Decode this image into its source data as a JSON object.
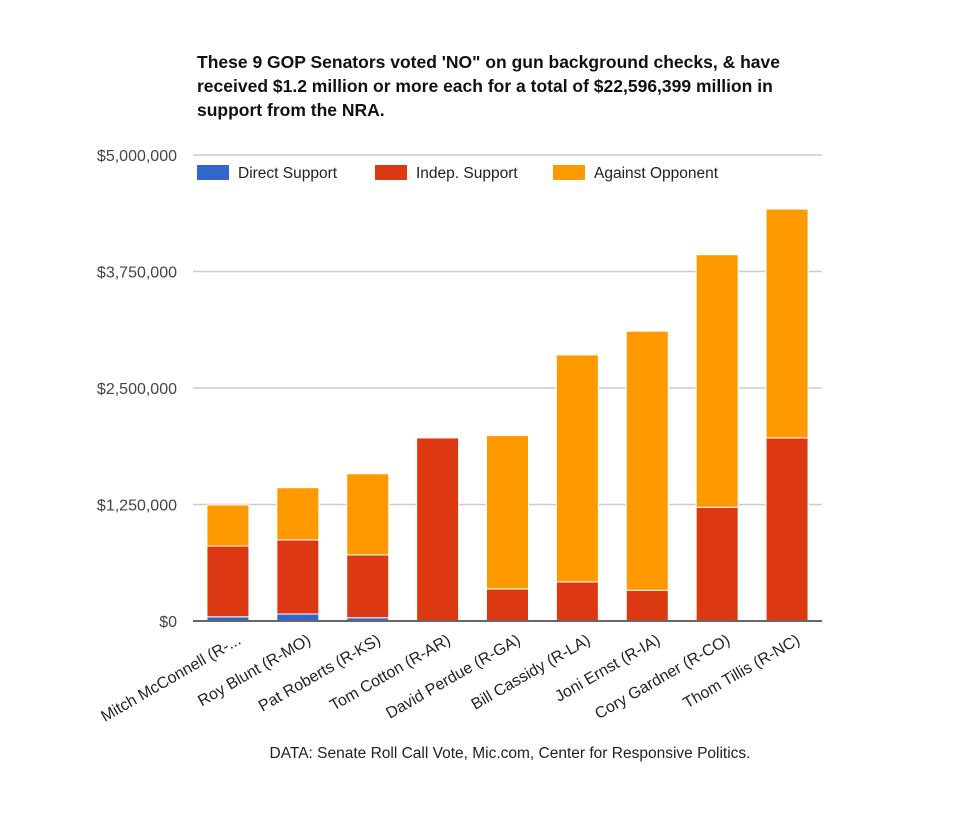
{
  "chart_data": {
    "type": "bar",
    "stacked": true,
    "title": "These 9 GOP Senators voted 'NO\" on gun background checks, & have received $1.2 million or more each for a total of $22,596,399 million in support from the NRA.",
    "xlabel": "",
    "ylabel": "",
    "ylim": [
      0,
      5000000
    ],
    "yticks": [
      0,
      1250000,
      2500000,
      3750000,
      5000000
    ],
    "ytick_labels": [
      "$0",
      "$1,250,000",
      "$2,500,000",
      "$3,750,000",
      "$5,000,000"
    ],
    "grid": true,
    "legend_position": "top-left",
    "categories": [
      "Mitch McConnell (R-...",
      "Roy Blunt (R-MO)",
      "Pat Roberts (R-KS)",
      "Tom Cotton (R-AR)",
      "David Perdue (R-GA)",
      "Bill Cassidy (R-LA)",
      "Joni Ernst (R-IA)",
      "Cory Gardner (R-CO)",
      "Thom Tillis (R-NC)"
    ],
    "series": [
      {
        "name": "Direct Support",
        "color": "#3366cc",
        "values": [
          45000,
          75000,
          35000,
          5000,
          0,
          0,
          0,
          0,
          0
        ]
      },
      {
        "name": "Indep. Support",
        "color": "#dc3912",
        "values": [
          760000,
          795000,
          675000,
          1960000,
          345000,
          420000,
          330000,
          1220000,
          1965000
        ]
      },
      {
        "name": "Against Opponent",
        "color": "#ff9900",
        "values": [
          440000,
          560000,
          870000,
          10000,
          1645000,
          2435000,
          2780000,
          2710000,
          2455000
        ]
      }
    ],
    "source": "DATA: Senate Roll Call Vote, Mic.com, Center for Responsive Politics."
  }
}
